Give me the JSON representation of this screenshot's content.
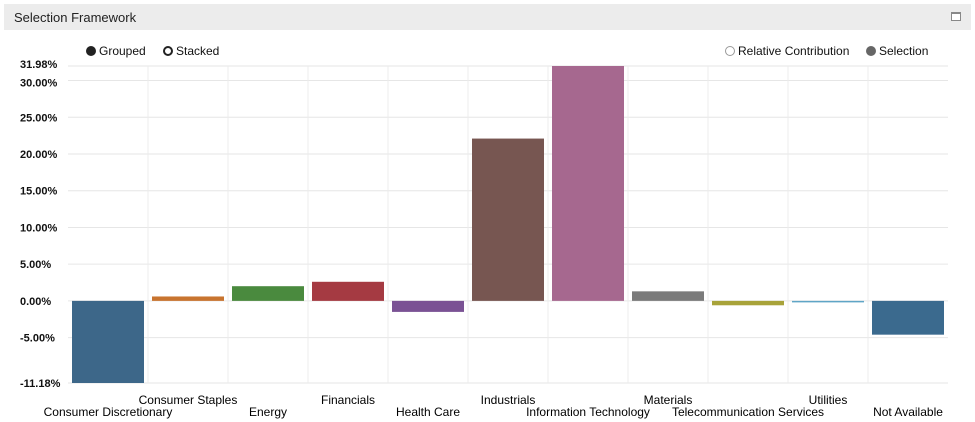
{
  "panel": {
    "title": "Selection Framework"
  },
  "controls": {
    "grouped": "Grouped",
    "stacked": "Stacked",
    "relative_contribution": "Relative Contribution",
    "selection": "Selection"
  },
  "chart_data": {
    "type": "bar",
    "title": "",
    "xlabel": "",
    "ylabel": "",
    "ylim": [
      -11.18,
      31.98
    ],
    "y_ticks": [
      -11.18,
      -5,
      0,
      5,
      10,
      15,
      20,
      25,
      30,
      31.98
    ],
    "y_tick_labels": [
      "-11.18%",
      "-5.00%",
      "0.00%",
      "5.00%",
      "10.00%",
      "15.00%",
      "20.00%",
      "25.00%",
      "30.00%",
      "31.98%"
    ],
    "grid": true,
    "legend": "top",
    "categories": [
      "Consumer Discretionary",
      "Consumer Staples",
      "Energy",
      "Financials",
      "Health Care",
      "Industrials",
      "Information Technology",
      "Materials",
      "Telecommunication Services",
      "Utilities",
      "Not Available"
    ],
    "series": [
      {
        "values": [
          -11.18,
          0.6,
          2.0,
          2.6,
          -1.5,
          22.1,
          31.98,
          1.3,
          -0.6,
          -0.2,
          -4.6
        ]
      }
    ],
    "colors": [
      "#3d6789",
      "#c8742f",
      "#4a8a3e",
      "#a53a42",
      "#7a5294",
      "#775651",
      "#a6688f",
      "#7b7b7b",
      "#a8a33a",
      "#5fa5c6",
      "#3b6a8e"
    ]
  }
}
